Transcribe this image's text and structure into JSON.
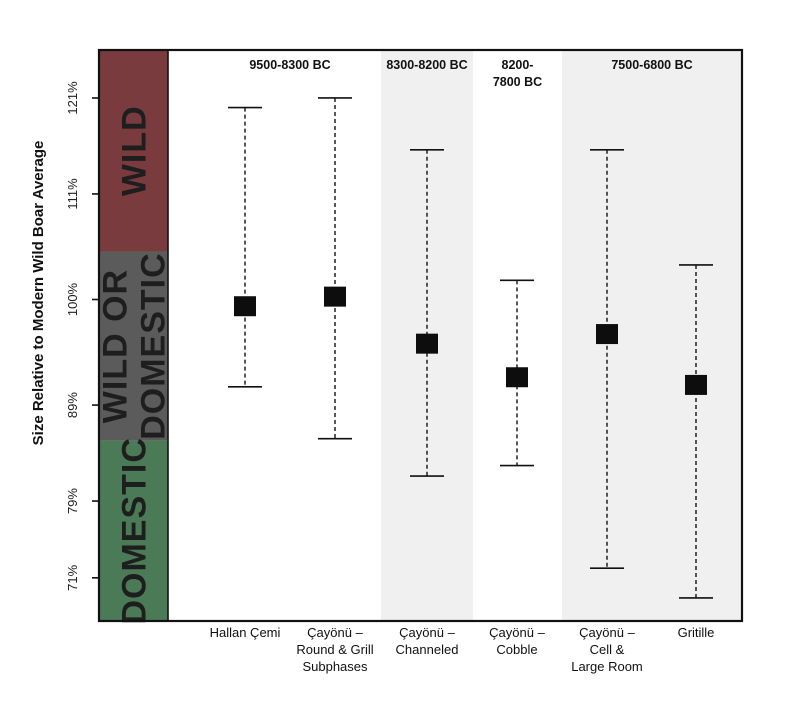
{
  "chart_data": {
    "type": "errorbar",
    "ylabel": "Size Relative to Modern Wild Boar Average",
    "y_ticks": [
      "121%",
      "111%",
      "100%",
      "89%",
      "79%",
      "71%"
    ],
    "y_tick_values": [
      121,
      111,
      100,
      89,
      79,
      71
    ],
    "ylim": [
      66.5,
      126
    ],
    "bands": [
      {
        "label": "WILD",
        "color": "#7a3b3e",
        "from": 105,
        "to": 126
      },
      {
        "label": "WILD OR DOMESTIC",
        "lines": [
          "WILD  OR",
          "DOMESTIC"
        ],
        "color": "#5b5b5b",
        "from": 85.3,
        "to": 105
      },
      {
        "label": "DOMESTIC",
        "color": "#4b7a57",
        "from": 66.5,
        "to": 85.3
      }
    ],
    "periods": [
      {
        "label": "9500-8300 BC",
        "lines": [
          "9500-8300 BC"
        ],
        "shaded": false,
        "categories": [
          0,
          1
        ]
      },
      {
        "label": "8300-8200 BC",
        "lines": [
          "8300-8200 BC"
        ],
        "shaded": true,
        "categories": [
          2
        ]
      },
      {
        "label": "8200-7800 BC",
        "lines": [
          "8200-",
          "7800 BC"
        ],
        "shaded": false,
        "categories": [
          3
        ]
      },
      {
        "label": "7500-6800 BC",
        "lines": [
          "7500-6800 BC"
        ],
        "shaded": true,
        "categories": [
          4,
          5
        ]
      }
    ],
    "categories": [
      {
        "label": "Hallan Çemi",
        "lines": [
          "Hallan Çemi"
        ]
      },
      {
        "label": "Çayönü – Round & Grill Subphases",
        "lines": [
          "Çayönü –",
          "Round & Grill",
          "Subphases"
        ]
      },
      {
        "label": "Çayönü – Channeled",
        "lines": [
          "Çayönü –",
          "Channeled"
        ]
      },
      {
        "label": "Çayönü – Cobble",
        "lines": [
          "Çayönü –",
          "Cobble"
        ]
      },
      {
        "label": "Çayönü – Cell & Large Room",
        "lines": [
          "Çayönü –",
          "Cell &",
          "Large Room"
        ]
      },
      {
        "label": "Gritille",
        "lines": [
          "Gritille"
        ]
      }
    ],
    "series": [
      {
        "mean": [
          99.3,
          100.3,
          95.4,
          91.9,
          96.4,
          91.1
        ],
        "upper": [
          120.0,
          121.0,
          115.6,
          102.0,
          115.6,
          103.6
        ],
        "lower": [
          90.9,
          85.5,
          81.6,
          82.7,
          72.0,
          68.9
        ]
      }
    ],
    "grid": false,
    "legend": "none"
  }
}
